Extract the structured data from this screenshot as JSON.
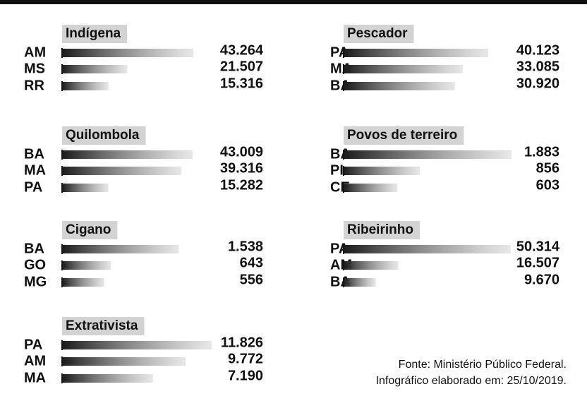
{
  "chart_data": [
    {
      "type": "bar",
      "orientation": "horizontal",
      "title": "Indígena",
      "categories": [
        "AM",
        "MS",
        "RR"
      ],
      "values": [
        43264,
        21507,
        15316
      ],
      "value_labels": [
        "43.264",
        "21.507",
        "15.316"
      ],
      "xlim": [
        0,
        50000
      ],
      "color": "#1a1a1a"
    },
    {
      "type": "bar",
      "orientation": "horizontal",
      "title": "Quilombola",
      "categories": [
        "BA",
        "MA",
        "PA"
      ],
      "values": [
        43009,
        39316,
        15282
      ],
      "value_labels": [
        "43.009",
        "39.316",
        "15.282"
      ],
      "xlim": [
        0,
        50000
      ],
      "color": "#1a1a1a"
    },
    {
      "type": "bar",
      "orientation": "horizontal",
      "title": "Cigano",
      "categories": [
        "BA",
        "GO",
        "MG"
      ],
      "values": [
        1538,
        643,
        556
      ],
      "value_labels": [
        "1.538",
        "643",
        "556"
      ],
      "xlim": [
        0,
        2000
      ],
      "color": "#1a1a1a"
    },
    {
      "type": "bar",
      "orientation": "horizontal",
      "title": "Extrativista",
      "categories": [
        "PA",
        "AM",
        "MA"
      ],
      "values": [
        11826,
        9772,
        7190
      ],
      "value_labels": [
        "11.826",
        "9.772",
        "7.190"
      ],
      "xlim": [
        0,
        12000
      ],
      "color": "#1a1a1a"
    },
    {
      "type": "bar",
      "orientation": "horizontal",
      "title": "Pescador",
      "categories": [
        "PA",
        "MA",
        "BA"
      ],
      "values": [
        40123,
        33085,
        30920
      ],
      "value_labels": [
        "40.123",
        "33.085",
        "30.920"
      ],
      "xlim": [
        0,
        47000
      ],
      "color": "#1a1a1a"
    },
    {
      "type": "bar",
      "orientation": "horizontal",
      "title": "Povos de terreiro",
      "categories": [
        "BA",
        "PI",
        "CE"
      ],
      "values": [
        1883,
        856,
        603
      ],
      "value_labels": [
        "1.883",
        "856",
        "603"
      ],
      "xlim": [
        0,
        1900
      ],
      "color": "#1a1a1a"
    },
    {
      "type": "bar",
      "orientation": "horizontal",
      "title": "Ribeirinho",
      "categories": [
        "PA",
        "AM",
        "BA"
      ],
      "values": [
        50314,
        16507,
        9670
      ],
      "value_labels": [
        "50.314",
        "16.507",
        "9.670"
      ],
      "xlim": [
        0,
        51000
      ],
      "color": "#1a1a1a"
    }
  ],
  "source": "Fonte: Ministério Público Federal.",
  "credit": "Infográfico elaborado em: 25/10/2019."
}
